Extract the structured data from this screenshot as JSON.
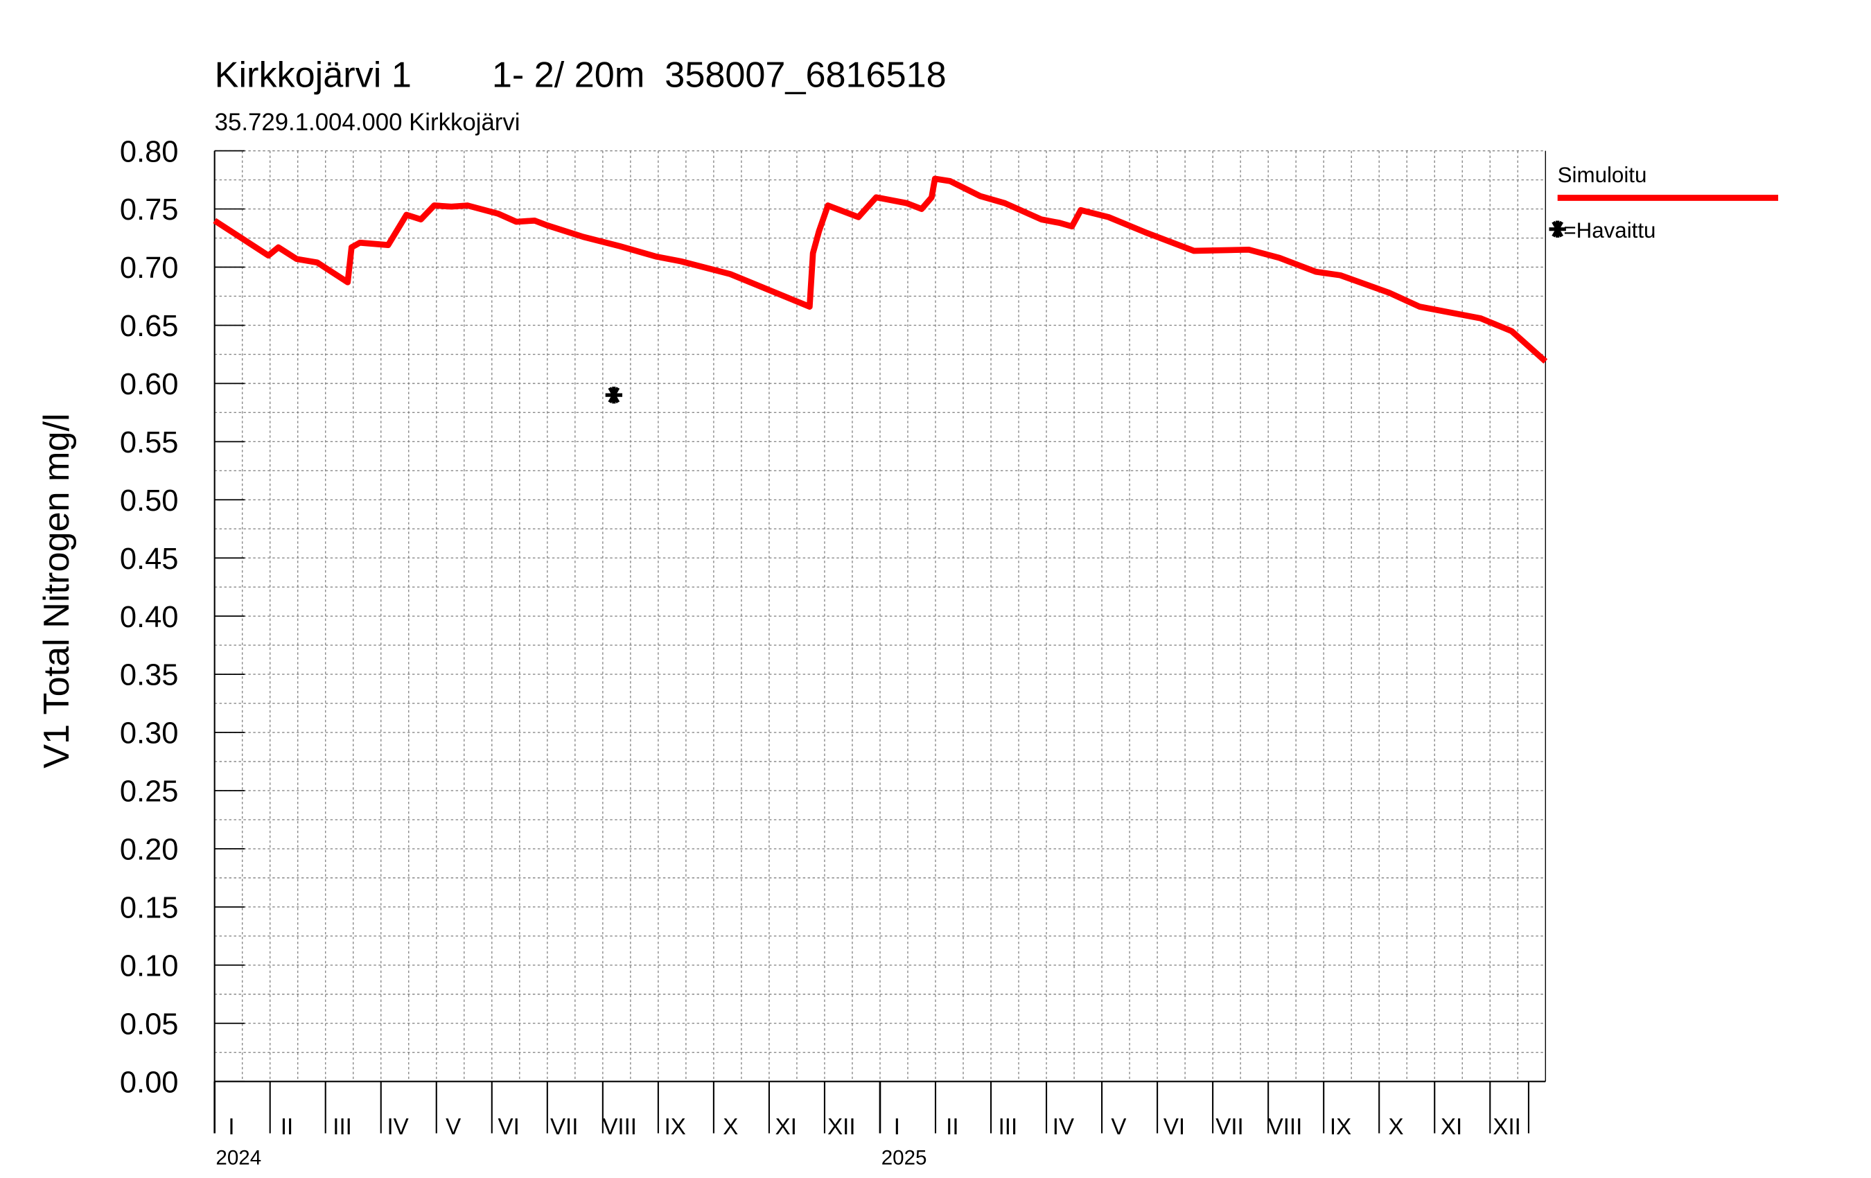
{
  "chart_data": {
    "type": "line",
    "title": "Kirkkojärvi 1        1- 2/ 20m  358007_6816518",
    "subtitle": "35.729.1.004.000 Kirkkojärvi",
    "y_label": "V1 Total Nitrogen mg/l",
    "ylim": [
      0,
      0.8
    ],
    "yticks": [
      {
        "value": 0,
        "label": "0.00"
      },
      {
        "value": 0.05,
        "label": "0.05"
      },
      {
        "value": 0.1,
        "label": "0.10"
      },
      {
        "value": 0.15,
        "label": "0.15"
      },
      {
        "value": 0.2,
        "label": "0.20"
      },
      {
        "value": 0.25,
        "label": "0.25"
      },
      {
        "value": 0.3,
        "label": "0.30"
      },
      {
        "value": 0.35,
        "label": "0.35"
      },
      {
        "value": 0.4,
        "label": "0.40"
      },
      {
        "value": 0.45,
        "label": "0.45"
      },
      {
        "value": 0.5,
        "label": "0.50"
      },
      {
        "value": 0.55,
        "label": "0.55"
      },
      {
        "value": 0.6,
        "label": "0.60"
      },
      {
        "value": 0.65,
        "label": "0.65"
      },
      {
        "value": 0.7,
        "label": "0.70"
      },
      {
        "value": 0.75,
        "label": "0.75"
      },
      {
        "value": 0.8,
        "label": "0.80"
      }
    ],
    "xlim": [
      0,
      24
    ],
    "month_labels": [
      "I",
      "II",
      "III",
      "IV",
      "V",
      "VI",
      "VII",
      "VIII",
      "IX",
      "X",
      "XI",
      "XII",
      "I",
      "II",
      "III",
      "IV",
      "V",
      "VI",
      "VII",
      "VIII",
      "IX",
      "X",
      "XI",
      "XII"
    ],
    "year_labels": [
      {
        "value": 0,
        "label": "2024"
      },
      {
        "value": 12,
        "label": "2025"
      }
    ],
    "grid": true,
    "series": [
      {
        "name": "Simuloitu",
        "color": "#ff0000",
        "x": [
          0,
          0.97,
          1.15,
          1.48,
          1.85,
          2.4,
          2.47,
          2.62,
          3.13,
          3.46,
          3.72,
          3.96,
          4.27,
          4.56,
          5.11,
          5.44,
          5.77,
          5.99,
          6.65,
          7.31,
          7.97,
          8.41,
          9.3,
          10.73,
          10.79,
          10.9,
          11.06,
          11.61,
          11.93,
          12.48,
          12.75,
          12.93,
          12.99,
          13.26,
          13.81,
          14.25,
          14.91,
          15.24,
          15.46,
          15.62,
          16.12,
          16.78,
          17.66,
          18.65,
          19.2,
          19.86,
          20.3,
          21.18,
          21.73,
          22.83,
          23.39,
          24
        ],
        "values": [
          0.74,
          0.71,
          0.717,
          0.707,
          0.704,
          0.687,
          0.717,
          0.721,
          0.719,
          0.745,
          0.741,
          0.753,
          0.752,
          0.753,
          0.746,
          0.739,
          0.74,
          0.736,
          0.726,
          0.718,
          0.709,
          0.705,
          0.694,
          0.666,
          0.712,
          0.731,
          0.753,
          0.743,
          0.76,
          0.755,
          0.75,
          0.76,
          0.776,
          0.774,
          0.761,
          0.755,
          0.741,
          0.738,
          0.735,
          0.749,
          0.743,
          0.73,
          0.714,
          0.715,
          0.708,
          0.696,
          0.693,
          0.678,
          0.666,
          0.656,
          0.645,
          0.619
        ]
      },
      {
        "name": "=Havaittu",
        "color": "#000000",
        "marker": "star",
        "x": [
          7.2
        ],
        "values": [
          0.59
        ]
      }
    ]
  }
}
